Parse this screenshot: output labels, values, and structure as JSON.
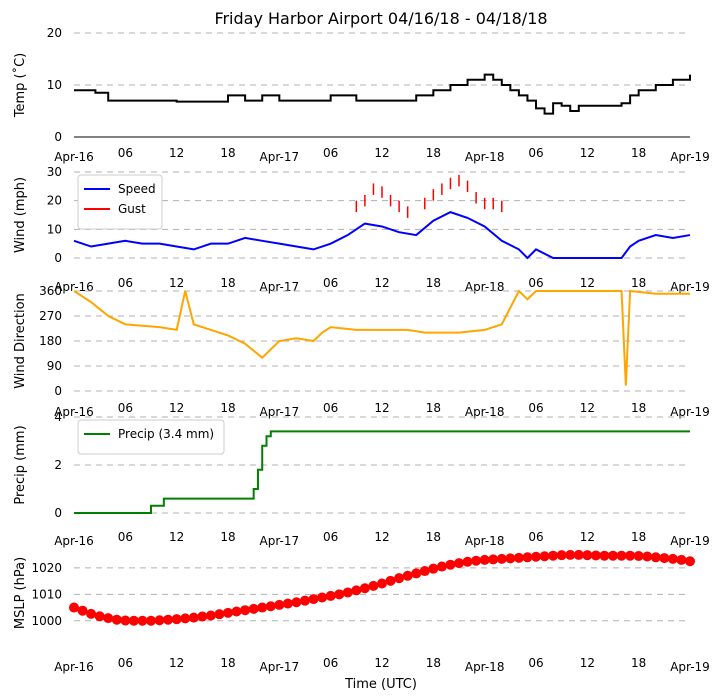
{
  "title": "Friday Harbor Airport 04/16/18 - 04/18/18",
  "xlabel": "Time (UTC)",
  "x_tick_labels": [
    "Apr-16",
    "06",
    "12",
    "18",
    "Apr-17",
    "06",
    "12",
    "18",
    "Apr-18",
    "06",
    "12",
    "18",
    "Apr-19"
  ],
  "x_range_hours": [
    0,
    72
  ],
  "chart_data": [
    {
      "type": "line",
      "name": "temp",
      "ylabel": "Temp ($^\\circ$C)",
      "ylabel_display": "Temp (˚C)",
      "ylim": [
        0,
        20
      ],
      "yticks": [
        "0",
        "10",
        "20"
      ],
      "ytick_values": [
        0,
        10,
        20
      ],
      "x_axis_line": true,
      "series": [
        {
          "name": "Temp",
          "color": "#000000",
          "step": true,
          "points": [
            [
              0,
              9
            ],
            [
              2.5,
              8.5
            ],
            [
              4,
              7
            ],
            [
              12,
              6.8
            ],
            [
              18,
              8
            ],
            [
              20,
              7
            ],
            [
              22,
              8
            ],
            [
              24,
              7
            ],
            [
              29,
              7
            ],
            [
              30,
              8
            ],
            [
              33,
              7
            ],
            [
              39,
              7
            ],
            [
              40,
              8
            ],
            [
              42,
              9
            ],
            [
              44,
              10
            ],
            [
              46,
              11
            ],
            [
              48,
              12
            ],
            [
              49,
              11
            ],
            [
              50,
              10
            ],
            [
              51,
              9
            ],
            [
              52,
              8
            ],
            [
              53,
              7
            ],
            [
              54,
              5.5
            ],
            [
              55,
              4.5
            ],
            [
              56,
              6.5
            ],
            [
              57,
              6
            ],
            [
              58,
              5
            ],
            [
              59,
              6
            ],
            [
              64,
              6.5
            ],
            [
              65,
              8
            ],
            [
              66,
              9
            ],
            [
              68,
              10
            ],
            [
              70,
              11
            ],
            [
              72,
              12
            ]
          ]
        }
      ]
    },
    {
      "type": "line",
      "name": "wind",
      "ylabel": "Wind (mph)",
      "ylim": [
        0,
        30
      ],
      "yticks": [
        "0",
        "10",
        "20",
        "30"
      ],
      "ytick_values": [
        0,
        10,
        20,
        30
      ],
      "legend": [
        "Speed",
        "Gust"
      ],
      "series": [
        {
          "name": "Speed",
          "color": "#0000ff",
          "points": [
            [
              0,
              6
            ],
            [
              2,
              4
            ],
            [
              4,
              5
            ],
            [
              6,
              6
            ],
            [
              8,
              5
            ],
            [
              10,
              5
            ],
            [
              12,
              4
            ],
            [
              14,
              3
            ],
            [
              16,
              5
            ],
            [
              18,
              5
            ],
            [
              20,
              7
            ],
            [
              22,
              6
            ],
            [
              24,
              5
            ],
            [
              26,
              4
            ],
            [
              28,
              3
            ],
            [
              30,
              5
            ],
            [
              32,
              8
            ],
            [
              34,
              12
            ],
            [
              36,
              11
            ],
            [
              38,
              9
            ],
            [
              40,
              8
            ],
            [
              42,
              13
            ],
            [
              44,
              16
            ],
            [
              46,
              14
            ],
            [
              48,
              11
            ],
            [
              50,
              6
            ],
            [
              52,
              3
            ],
            [
              53,
              0
            ],
            [
              54,
              3
            ],
            [
              56,
              0
            ],
            [
              64,
              0
            ],
            [
              65,
              4
            ],
            [
              66,
              6
            ],
            [
              68,
              8
            ],
            [
              70,
              7
            ],
            [
              72,
              8
            ]
          ]
        },
        {
          "name": "Gust",
          "color": "#ff0000",
          "points": [
            [
              33,
              18
            ],
            [
              34,
              20
            ],
            [
              35,
              24
            ],
            [
              36,
              23
            ],
            [
              37,
              20
            ],
            [
              38,
              18
            ],
            [
              39,
              16
            ],
            [
              41,
              19
            ],
            [
              42,
              22
            ],
            [
              43,
              24
            ],
            [
              44,
              26
            ],
            [
              45,
              27
            ],
            [
              46,
              25
            ],
            [
              47,
              21
            ],
            [
              48,
              19
            ],
            [
              49,
              19
            ],
            [
              50,
              18
            ]
          ]
        }
      ]
    },
    {
      "type": "line",
      "name": "wind_direction",
      "ylabel": "Wind Direction",
      "ylim": [
        0,
        360
      ],
      "yticks": [
        "0",
        "90",
        "180",
        "270",
        "360"
      ],
      "ytick_values": [
        0,
        90,
        180,
        270,
        360
      ],
      "series": [
        {
          "name": "Direction",
          "color": "#ffa500",
          "points": [
            [
              0,
              360
            ],
            [
              1,
              340
            ],
            [
              2,
              320
            ],
            [
              4,
              270
            ],
            [
              6,
              240
            ],
            [
              10,
              230
            ],
            [
              12,
              220
            ],
            [
              13,
              360
            ],
            [
              14,
              240
            ],
            [
              16,
              220
            ],
            [
              18,
              200
            ],
            [
              20,
              170
            ],
            [
              22,
              120
            ],
            [
              24,
              180
            ],
            [
              26,
              190
            ],
            [
              28,
              180
            ],
            [
              29,
              210
            ],
            [
              30,
              230
            ],
            [
              33,
              220
            ],
            [
              39,
              220
            ],
            [
              41,
              210
            ],
            [
              45,
              210
            ],
            [
              48,
              220
            ],
            [
              50,
              240
            ],
            [
              51,
              300
            ],
            [
              52,
              360
            ],
            [
              53,
              330
            ],
            [
              54,
              360
            ],
            [
              64,
              360
            ],
            [
              64.5,
              20
            ],
            [
              65,
              360
            ],
            [
              68,
              350
            ],
            [
              72,
              350
            ]
          ]
        }
      ]
    },
    {
      "type": "line",
      "name": "precip",
      "ylabel": "Precip (mm)",
      "ylim": [
        0,
        4
      ],
      "yticks": [
        "0",
        "2",
        "4"
      ],
      "ytick_values": [
        0,
        2,
        4
      ],
      "legend": [
        "Precip (3.4 mm)"
      ],
      "series": [
        {
          "name": "Precip (3.4 mm)",
          "color": "#008000",
          "step": true,
          "points": [
            [
              0,
              0
            ],
            [
              9,
              0
            ],
            [
              9,
              0.3
            ],
            [
              10.5,
              0.3
            ],
            [
              10.5,
              0.6
            ],
            [
              20.5,
              0.6
            ],
            [
              21,
              1
            ],
            [
              21.5,
              1.8
            ],
            [
              22,
              2.8
            ],
            [
              22.5,
              3.2
            ],
            [
              23,
              3.4
            ],
            [
              72,
              3.4
            ]
          ]
        }
      ]
    },
    {
      "type": "scatter",
      "name": "mslp",
      "ylabel": "MSLP (hPa)",
      "ylim": [
        995,
        1026
      ],
      "yticks": [
        "1000",
        "1010",
        "1020"
      ],
      "ytick_values": [
        1000,
        1010,
        1020
      ],
      "series": [
        {
          "name": "MSLP",
          "color": "#ff0000",
          "x": [
            0,
            1,
            2,
            3,
            4,
            5,
            6,
            7,
            8,
            9,
            10,
            11,
            12,
            13,
            14,
            15,
            16,
            17,
            18,
            19,
            20,
            21,
            22,
            23,
            24,
            25,
            26,
            27,
            28,
            29,
            30,
            31,
            32,
            33,
            34,
            35,
            36,
            37,
            38,
            39,
            40,
            41,
            42,
            43,
            44,
            45,
            46,
            47,
            48,
            49,
            50,
            51,
            52,
            53,
            54,
            55,
            56,
            57,
            58,
            59,
            60,
            61,
            62,
            63,
            64,
            65,
            66,
            67,
            68,
            69,
            70,
            71,
            72
          ],
          "values": [
            1005,
            1003.8,
            1002.6,
            1001.7,
            1001,
            1000.4,
            1000.1,
            1000,
            1000,
            1000,
            1000.2,
            1000.4,
            1000.6,
            1000.9,
            1001.2,
            1001.6,
            1002,
            1002.5,
            1003,
            1003.5,
            1004,
            1004.5,
            1005,
            1005.5,
            1006,
            1006.5,
            1007,
            1007.6,
            1008.2,
            1008.8,
            1009.4,
            1010,
            1010.7,
            1011.5,
            1012.3,
            1013.2,
            1014.1,
            1015.1,
            1016.1,
            1017,
            1017.9,
            1018.8,
            1019.7,
            1020.5,
            1021.2,
            1021.8,
            1022.3,
            1022.7,
            1023,
            1023.2,
            1023.4,
            1023.6,
            1023.8,
            1024,
            1024.2,
            1024.4,
            1024.6,
            1024.8,
            1024.9,
            1024.9,
            1024.8,
            1024.7,
            1024.6,
            1024.6,
            1024.6,
            1024.6,
            1024.5,
            1024.3,
            1024,
            1023.7,
            1023.4,
            1023,
            1022.5
          ]
        }
      ]
    }
  ]
}
